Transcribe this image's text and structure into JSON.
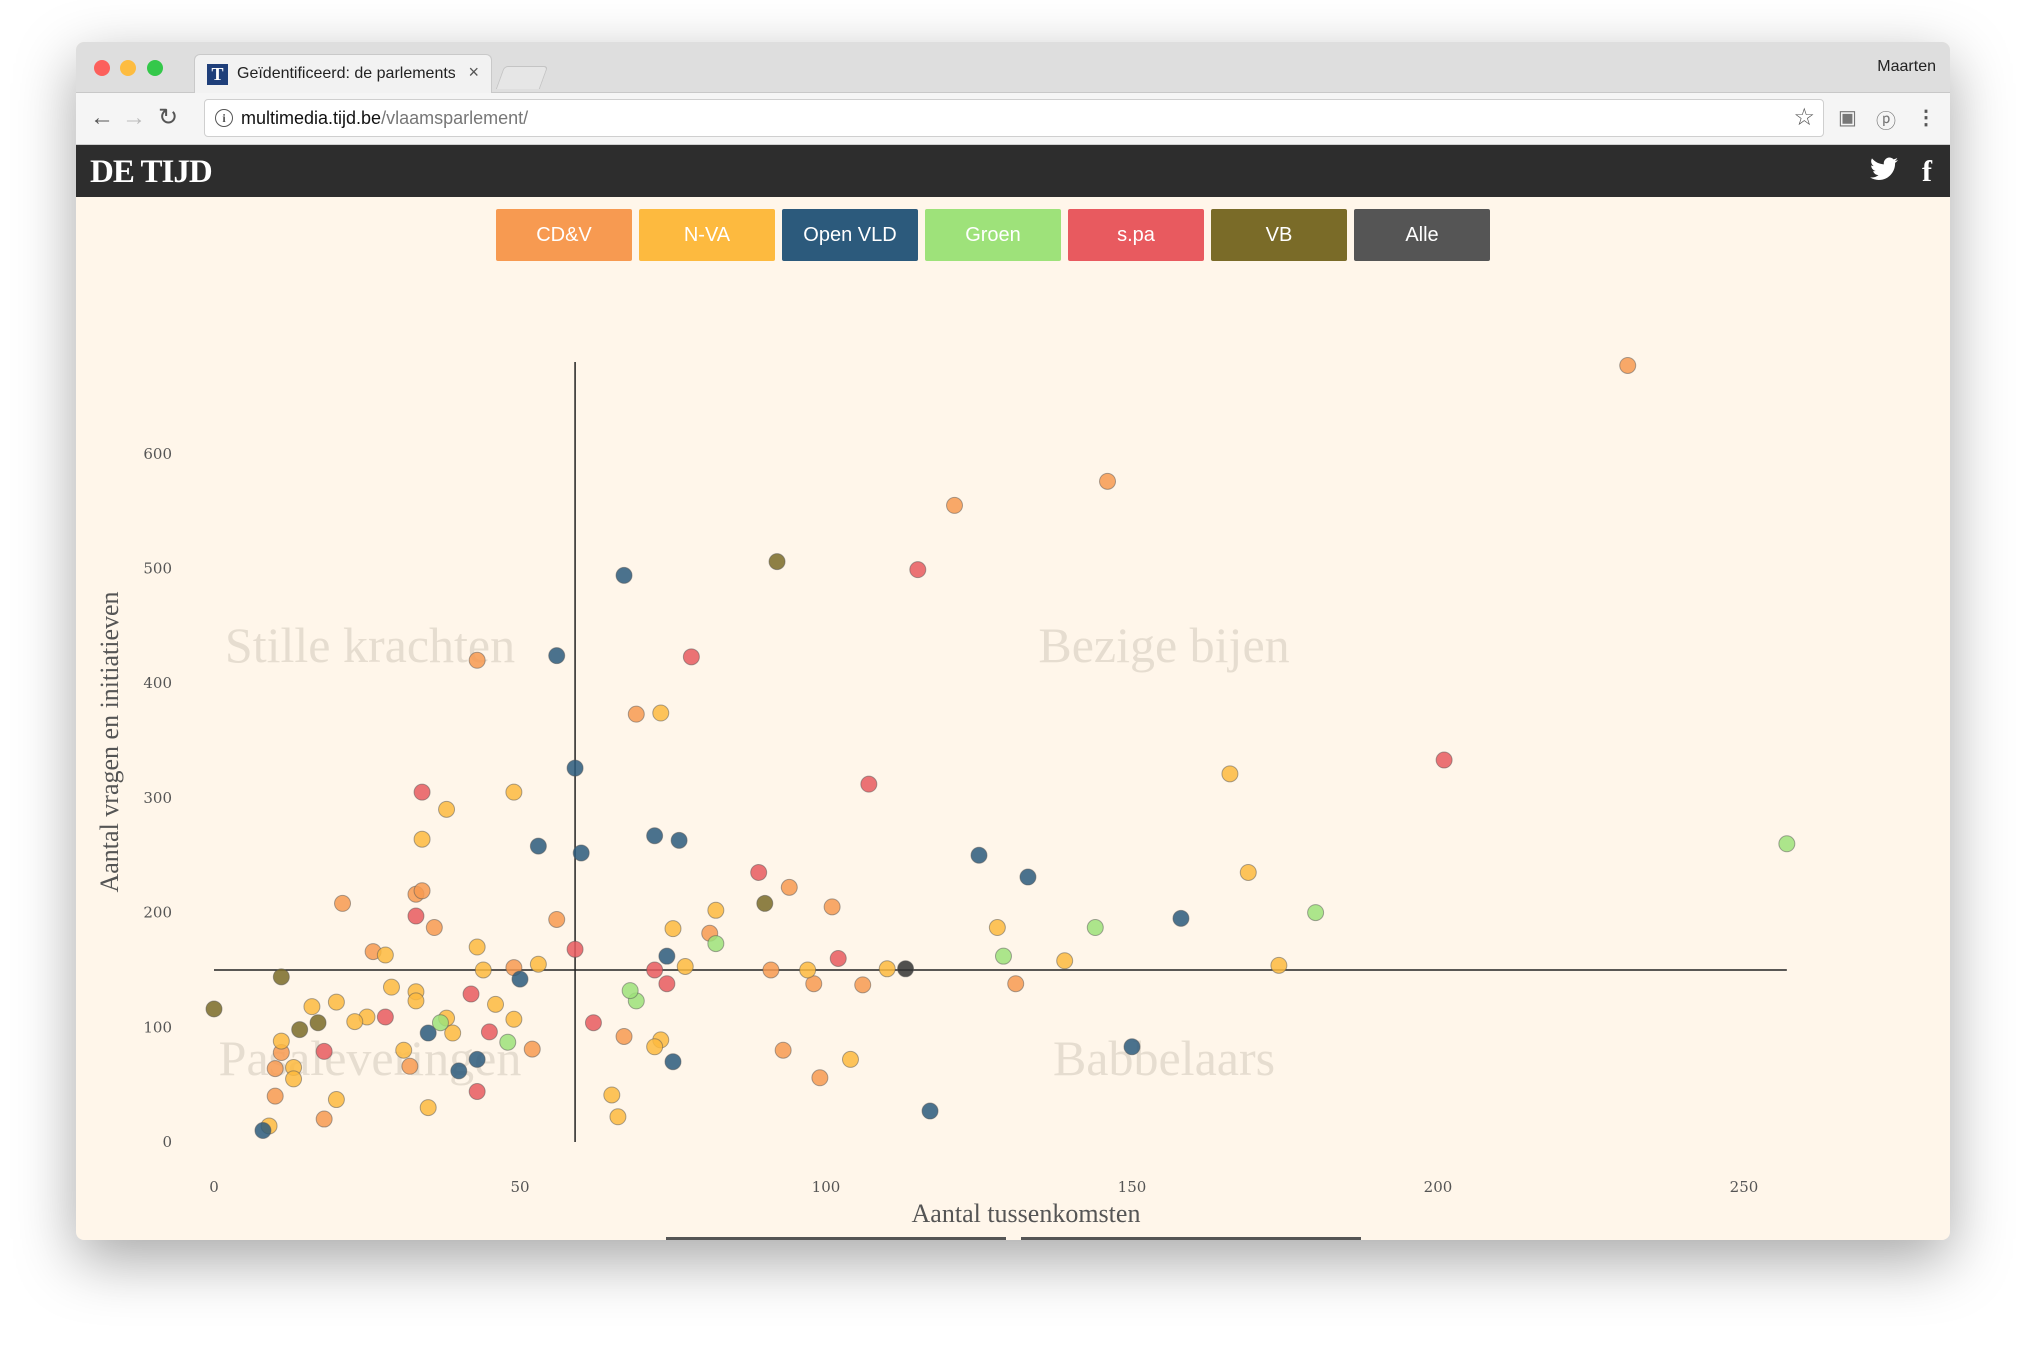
{
  "browser": {
    "tab_title": "Geïdentificeerd: de parlements",
    "tab_close": "×",
    "profile_name": "Maarten",
    "url_host": "multimedia.tijd.be",
    "url_path": "/vlaamsparlement/",
    "icons": [
      "back-icon",
      "forward-icon",
      "reload-icon",
      "info-icon",
      "star-icon",
      "extension-icon",
      "menu-icon"
    ]
  },
  "site": {
    "logo": "DE TIJD",
    "social": [
      "twitter-icon",
      "facebook-icon"
    ]
  },
  "filters": [
    {
      "label": "CD&V",
      "color": "#f79a51"
    },
    {
      "label": "N-VA",
      "color": "#fdba3f"
    },
    {
      "label": "Open VLD",
      "color": "#2c5a7c"
    },
    {
      "label": "Groen",
      "color": "#9ee27a"
    },
    {
      "label": "s.pa",
      "color": "#e85a5f"
    },
    {
      "label": "VB",
      "color": "#7a6b28"
    },
    {
      "label": "Alle",
      "color": "#555555"
    }
  ],
  "chart_data": {
    "type": "scatter",
    "xlabel": "Aantal tussenkomsten",
    "ylabel": "Aantal vragen en initiatieven",
    "xlim": [
      0,
      260
    ],
    "ylim": [
      0,
      680
    ],
    "xticks": [
      0,
      50,
      100,
      150,
      200,
      250
    ],
    "yticks": [
      0,
      100,
      200,
      300,
      400,
      500,
      600
    ],
    "reference_lines": {
      "x": 59,
      "y": 150
    },
    "quadrant_labels": {
      "top_left": "Stille krachten",
      "top_right": "Bezige bijen",
      "bottom_left": "Pasaleveringen",
      "bottom_right": "Babbelaars"
    },
    "series": [
      {
        "party": "CD&V",
        "color": "#f79a51",
        "points": [
          [
            231,
            677
          ],
          [
            146,
            576
          ],
          [
            121,
            555
          ],
          [
            43,
            420
          ],
          [
            69,
            373
          ],
          [
            21,
            208
          ],
          [
            26,
            166
          ],
          [
            33,
            216
          ],
          [
            34,
            219
          ],
          [
            36,
            187
          ],
          [
            56,
            194
          ],
          [
            49,
            152
          ],
          [
            52,
            81
          ],
          [
            10,
            64
          ],
          [
            10,
            40
          ],
          [
            18,
            20
          ],
          [
            32,
            66
          ],
          [
            91,
            150
          ],
          [
            93,
            80
          ],
          [
            94,
            222
          ],
          [
            98,
            138
          ],
          [
            99,
            56
          ],
          [
            101,
            205
          ],
          [
            106,
            137
          ],
          [
            131,
            138
          ],
          [
            81,
            182
          ],
          [
            67,
            92
          ],
          [
            11,
            78
          ]
        ]
      },
      {
        "party": "N-VA",
        "color": "#fdba3f",
        "points": [
          [
            166,
            321
          ],
          [
            169,
            235
          ],
          [
            174,
            154
          ],
          [
            139,
            158
          ],
          [
            128,
            187
          ],
          [
            110,
            151
          ],
          [
            104,
            72
          ],
          [
            97,
            150
          ],
          [
            82,
            202
          ],
          [
            77,
            153
          ],
          [
            75,
            186
          ],
          [
            73,
            374
          ],
          [
            73,
            89
          ],
          [
            72,
            83
          ],
          [
            66,
            22
          ],
          [
            65,
            41
          ],
          [
            49,
            305
          ],
          [
            38,
            290
          ],
          [
            34,
            264
          ],
          [
            28,
            163
          ],
          [
            29,
            135
          ],
          [
            33,
            131
          ],
          [
            33,
            123
          ],
          [
            25,
            109
          ],
          [
            23,
            105
          ],
          [
            20,
            122
          ],
          [
            16,
            118
          ],
          [
            13,
            65
          ],
          [
            13,
            55
          ],
          [
            11,
            88
          ],
          [
            9,
            14
          ],
          [
            20,
            37
          ],
          [
            31,
            80
          ],
          [
            35,
            30
          ],
          [
            43,
            170
          ],
          [
            44,
            150
          ],
          [
            46,
            120
          ],
          [
            49,
            107
          ],
          [
            53,
            155
          ],
          [
            38,
            108
          ],
          [
            39,
            95
          ]
        ]
      },
      {
        "party": "Open VLD",
        "color": "#2c5a7c",
        "points": [
          [
            67,
            494
          ],
          [
            56,
            424
          ],
          [
            59,
            326
          ],
          [
            72,
            267
          ],
          [
            76,
            263
          ],
          [
            53,
            258
          ],
          [
            60,
            252
          ],
          [
            125,
            250
          ],
          [
            133,
            231
          ],
          [
            158,
            195
          ],
          [
            150,
            83
          ],
          [
            117,
            27
          ],
          [
            75,
            70
          ],
          [
            74,
            162
          ],
          [
            50,
            142
          ],
          [
            35,
            95
          ],
          [
            40,
            62
          ],
          [
            43,
            72
          ],
          [
            8,
            10
          ]
        ]
      },
      {
        "party": "Groen",
        "color": "#9ee27a",
        "points": [
          [
            257,
            260
          ],
          [
            180,
            200
          ],
          [
            144,
            187
          ],
          [
            129,
            162
          ],
          [
            82,
            173
          ],
          [
            69,
            123
          ],
          [
            68,
            132
          ],
          [
            48,
            87
          ],
          [
            37,
            104
          ]
        ]
      },
      {
        "party": "s.pa",
        "color": "#e85a5f",
        "points": [
          [
            201,
            333
          ],
          [
            115,
            499
          ],
          [
            78,
            423
          ],
          [
            107,
            312
          ],
          [
            34,
            305
          ],
          [
            89,
            235
          ],
          [
            102,
            160
          ],
          [
            72,
            150
          ],
          [
            74,
            138
          ],
          [
            62,
            104
          ],
          [
            59,
            168
          ],
          [
            42,
            129
          ],
          [
            45,
            96
          ],
          [
            43,
            44
          ],
          [
            28,
            109
          ],
          [
            18,
            79
          ],
          [
            33,
            197
          ]
        ]
      },
      {
        "party": "VB",
        "color": "#7a6b28",
        "points": [
          [
            92,
            506
          ],
          [
            90,
            208
          ],
          [
            11,
            144
          ],
          [
            0,
            116
          ],
          [
            14,
            98
          ],
          [
            17,
            104
          ]
        ]
      },
      {
        "party": "Alle",
        "color": "#333333",
        "points": [
          [
            113,
            151
          ]
        ]
      }
    ]
  }
}
